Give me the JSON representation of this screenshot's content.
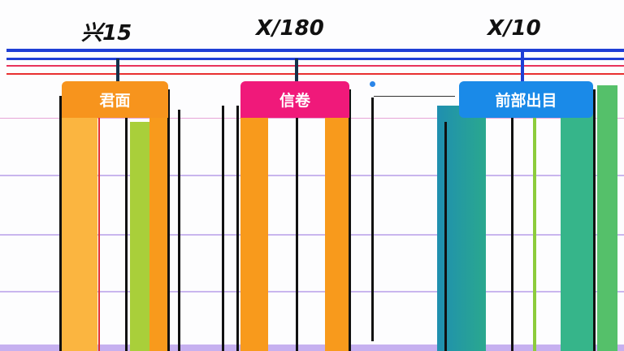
{
  "values": [
    {
      "label": "兴15",
      "header": "君面",
      "header_color": "#f7941d"
    },
    {
      "label": "X/180",
      "header": "信卷",
      "header_color": "#f0197a"
    },
    {
      "label": "X/10",
      "header": "前部出目",
      "header_color": "#1a8ae8"
    }
  ],
  "colors": {
    "blue_line": "#1f3fd6",
    "red_line": "#e8335a",
    "orange": "#f89a1c",
    "teal": "#2aa88e",
    "green": "#9ccf3c"
  }
}
